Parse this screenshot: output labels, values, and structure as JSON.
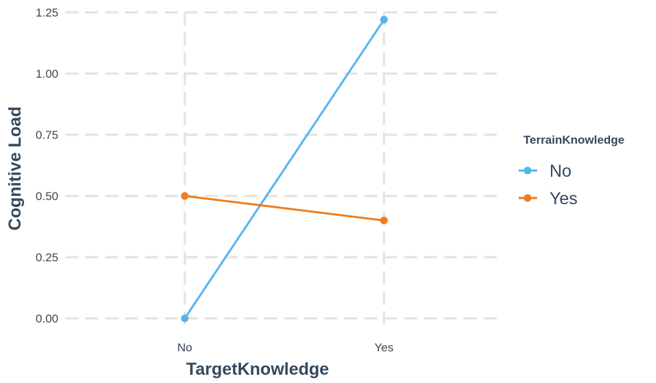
{
  "chart_data": {
    "type": "line",
    "categories": [
      "No",
      "Yes"
    ],
    "xlabel": "TargetKnowledge",
    "ylabel": "Cognitive Load",
    "ylim": [
      0,
      1.25
    ],
    "yticks": [
      "0.00",
      "0.25",
      "0.50",
      "0.75",
      "1.00",
      "1.25"
    ],
    "grid": true,
    "legend_position": "right",
    "legend_title": "TerrainKnowledge",
    "series": [
      {
        "name": "No",
        "values": [
          0.0,
          1.22
        ],
        "color": "#56b4e9"
      },
      {
        "name": "Yes",
        "values": [
          0.5,
          0.4
        ],
        "color": "#f07c1c"
      }
    ]
  }
}
